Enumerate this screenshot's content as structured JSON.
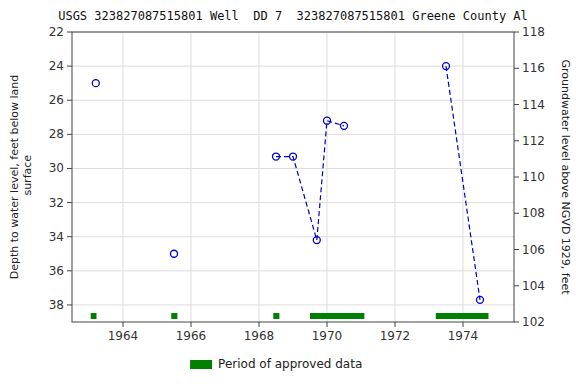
{
  "chart_data": {
    "type": "line",
    "title": "USGS 323827087515801 Well  DD 7  323827087515801 Greene County Al",
    "ylabel": "Depth to water level, feet below land\n surface",
    "y2label": "Groundwater level above NGVD 1929, feet",
    "series": [
      {
        "x": [
          1963.2
        ],
        "values": [
          25.0
        ],
        "color": "#0000CC",
        "marker": "circle",
        "line_style": "dashed"
      },
      {
        "x": [
          1965.5
        ],
        "values": [
          35.0
        ],
        "color": "#0000CC",
        "marker": "circle",
        "line_style": "dashed"
      },
      {
        "x": [
          1968.5,
          1969.0,
          1969.7,
          1970.0,
          1970.5
        ],
        "values": [
          29.3,
          29.3,
          34.2,
          27.2,
          27.5
        ],
        "color": "#0000CC",
        "marker": "circle",
        "line_style": "dashed"
      },
      {
        "x": [
          1973.5,
          1974.5
        ],
        "values": [
          24.0,
          37.7
        ],
        "color": "#0000CC",
        "marker": "circle",
        "line_style": "dashed"
      },
      {
        "type": "span",
        "name": "Period of approved data",
        "color": "#008000",
        "x_start": [
          1963.05,
          1965.42,
          1968.42,
          1969.5,
          1973.2
        ],
        "x_end": [
          1963.22,
          1965.6,
          1968.6,
          1971.1,
          1974.75
        ]
      }
    ],
    "xlim": [
      1962.5,
      1975.5
    ],
    "xticks": [
      1964,
      1966,
      1968,
      1970,
      1972,
      1974
    ],
    "ylim": [
      39,
      22
    ],
    "yticks": [
      22,
      24,
      26,
      28,
      30,
      32,
      34,
      36,
      38
    ],
    "y2lim": [
      102,
      118
    ],
    "y2ticks": [
      118,
      116,
      114,
      112,
      110,
      108,
      106,
      104,
      102
    ],
    "grid": true
  }
}
